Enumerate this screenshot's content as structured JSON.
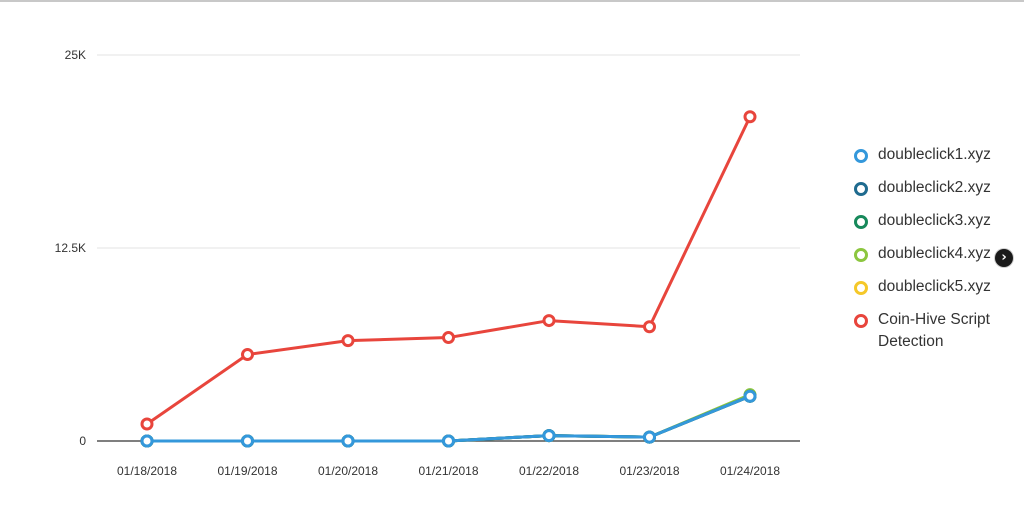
{
  "chart_data": {
    "type": "line",
    "categories": [
      "01/18/2018",
      "01/19/2018",
      "01/20/2018",
      "01/21/2018",
      "01/22/2018",
      "01/23/2018",
      "01/24/2018"
    ],
    "ylim": [
      0,
      25000
    ],
    "yticks": [
      0,
      12500,
      25000
    ],
    "ytick_labels": [
      "0",
      "12.5K",
      "25K"
    ],
    "grid": true,
    "legend_position": "right",
    "series": [
      {
        "name": "doubleclick1.xyz",
        "color": "#3498db",
        "values": [
          0,
          0,
          0,
          0,
          350,
          250,
          2900
        ]
      },
      {
        "name": "doubleclick2.xyz",
        "color": "#1f6b8f",
        "values": [
          0,
          0,
          0,
          0,
          350,
          250,
          2900
        ]
      },
      {
        "name": "doubleclick3.xyz",
        "color": "#17895b",
        "values": [
          0,
          0,
          0,
          0,
          350,
          250,
          2900
        ]
      },
      {
        "name": "doubleclick4.xyz",
        "color": "#8cc63f",
        "values": [
          0,
          0,
          0,
          0,
          350,
          250,
          3000
        ]
      },
      {
        "name": "doubleclick5.xyz",
        "color": "#f5c829",
        "values": [
          0,
          0,
          0,
          0,
          350,
          250,
          2900
        ]
      },
      {
        "name": "Coin-Hive Script Detection",
        "color": "#e8453c",
        "values": [
          1100,
          5600,
          6500,
          6700,
          7800,
          7400,
          21000
        ]
      }
    ]
  },
  "legend": {
    "items": [
      {
        "label": "doubleclick1.xyz",
        "color": "#3498db"
      },
      {
        "label": "doubleclick2.xyz",
        "color": "#1f6b8f"
      },
      {
        "label": "doubleclick3.xyz",
        "color": "#17895b"
      },
      {
        "label": "doubleclick4.xyz",
        "color": "#8cc63f"
      },
      {
        "label": "doubleclick5.xyz",
        "color": "#f5c829"
      },
      {
        "label": "Coin-Hive Script Detection",
        "color": "#e8453c"
      }
    ],
    "nav_icon": "chevron-right-icon",
    "nav_glyph": "›"
  }
}
